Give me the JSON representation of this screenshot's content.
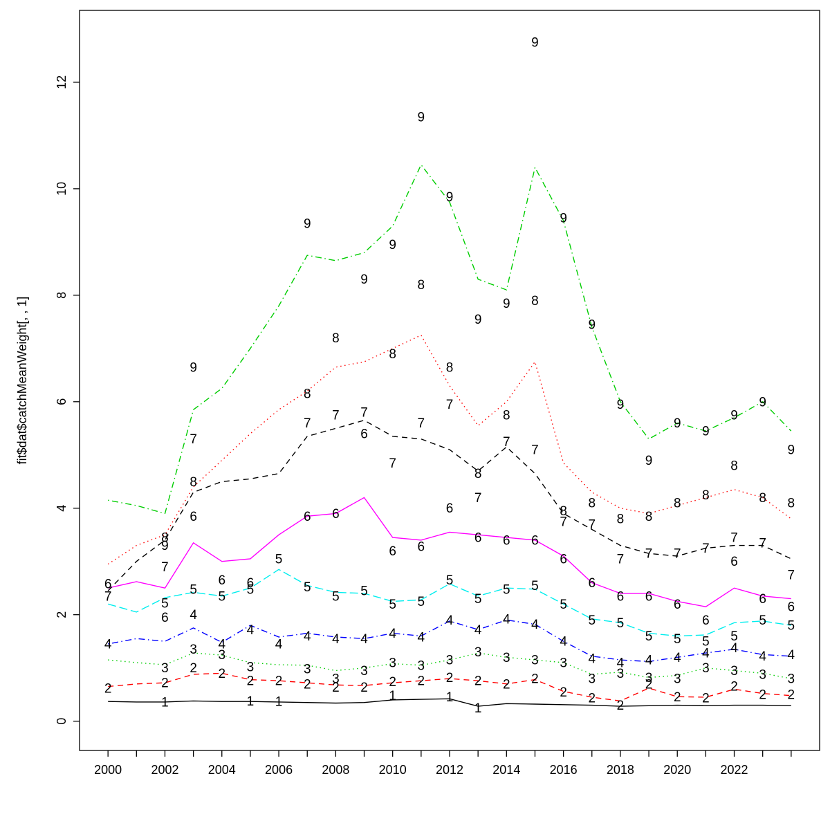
{
  "figure": {
    "background": "#ffffff"
  },
  "chart_data": {
    "type": "line",
    "title": "",
    "xlabel": "",
    "ylabel": "fit$dat$catchMeanWeight[, , 1]",
    "grid": false,
    "legend": "none",
    "xlim": [
      1999,
      2025
    ],
    "ylim": [
      -0.55,
      13.35
    ],
    "years": [
      2000,
      2001,
      2002,
      2003,
      2004,
      2005,
      2006,
      2007,
      2008,
      2009,
      2010,
      2011,
      2012,
      2013,
      2014,
      2015,
      2016,
      2017,
      2018,
      2019,
      2020,
      2021,
      2022,
      2023,
      2024
    ],
    "x_axis": {
      "tick_years": [
        2000,
        2001,
        2002,
        2003,
        2004,
        2005,
        2006,
        2007,
        2008,
        2009,
        2010,
        2011,
        2012,
        2013,
        2014,
        2015,
        2016,
        2017,
        2018,
        2019,
        2020,
        2021,
        2022,
        2023,
        2024
      ],
      "label_years": [
        2000,
        2002,
        2004,
        2006,
        2008,
        2010,
        2012,
        2014,
        2016,
        2018,
        2020,
        2022
      ],
      "labels": [
        "2000",
        "2002",
        "2004",
        "2006",
        "2008",
        "2010",
        "2012",
        "2014",
        "2016",
        "2018",
        "2020",
        "2022"
      ]
    },
    "y_axis": {
      "tick_values": [
        0,
        2,
        4,
        6,
        8,
        10,
        12
      ],
      "labels": [
        "0",
        "2",
        "4",
        "6",
        "8",
        "10",
        "12"
      ]
    },
    "series": [
      {
        "name": "1",
        "color": "#000000",
        "linetype": "solid",
        "line": [
          0.37,
          0.36,
          0.36,
          0.38,
          0.37,
          0.37,
          0.36,
          0.35,
          0.34,
          0.35,
          0.4,
          0.41,
          0.42,
          0.28,
          0.33,
          0.32,
          0.31,
          0.3,
          0.28,
          0.29,
          0.3,
          0.29,
          0.3,
          0.3,
          0.29
        ],
        "points": [
          [
            2002,
            0.36
          ],
          [
            2005,
            0.38
          ],
          [
            2006,
            0.37
          ],
          [
            2010,
            0.48
          ],
          [
            2012,
            0.46
          ],
          [
            2013,
            0.25
          ]
        ]
      },
      {
        "name": "2",
        "color": "#FF0000",
        "linetype": "dashed",
        "line": [
          0.65,
          0.7,
          0.72,
          0.88,
          0.9,
          0.78,
          0.76,
          0.72,
          0.68,
          0.67,
          0.72,
          0.76,
          0.8,
          0.76,
          0.7,
          0.78,
          0.56,
          0.45,
          0.38,
          0.62,
          0.46,
          0.45,
          0.6,
          0.52,
          0.48
        ],
        "points": [
          [
            2000,
            0.62
          ],
          [
            2002,
            0.72
          ],
          [
            2003,
            1.0
          ],
          [
            2004,
            0.9
          ],
          [
            2005,
            0.76
          ],
          [
            2006,
            0.76
          ],
          [
            2007,
            0.7
          ],
          [
            2008,
            0.64
          ],
          [
            2009,
            0.64
          ],
          [
            2010,
            0.74
          ],
          [
            2011,
            0.76
          ],
          [
            2012,
            0.82
          ],
          [
            2013,
            0.76
          ],
          [
            2014,
            0.7
          ],
          [
            2015,
            0.8
          ],
          [
            2016,
            0.55
          ],
          [
            2017,
            0.44
          ],
          [
            2018,
            0.3
          ],
          [
            2019,
            0.7
          ],
          [
            2020,
            0.46
          ],
          [
            2021,
            0.44
          ],
          [
            2022,
            0.66
          ],
          [
            2023,
            0.5
          ],
          [
            2024,
            0.5
          ]
        ]
      },
      {
        "name": "3",
        "color": "#00CD00",
        "linetype": "dotted",
        "line": [
          1.15,
          1.1,
          1.06,
          1.28,
          1.24,
          1.1,
          1.06,
          1.05,
          0.95,
          1.0,
          1.08,
          1.05,
          1.15,
          1.28,
          1.2,
          1.15,
          1.1,
          0.88,
          0.92,
          0.82,
          0.86,
          1.0,
          0.95,
          0.9,
          0.8
        ],
        "points": [
          [
            2002,
            1.0
          ],
          [
            2003,
            1.35
          ],
          [
            2004,
            1.25
          ],
          [
            2005,
            1.02
          ],
          [
            2007,
            0.98
          ],
          [
            2008,
            0.8
          ],
          [
            2009,
            0.95
          ],
          [
            2010,
            1.1
          ],
          [
            2011,
            1.05
          ],
          [
            2012,
            1.15
          ],
          [
            2013,
            1.3
          ],
          [
            2014,
            1.2
          ],
          [
            2015,
            1.15
          ],
          [
            2016,
            1.1
          ],
          [
            2017,
            0.8
          ],
          [
            2018,
            0.9
          ],
          [
            2019,
            0.82
          ],
          [
            2020,
            0.8
          ],
          [
            2021,
            1.0
          ],
          [
            2022,
            0.95
          ],
          [
            2023,
            0.88
          ],
          [
            2024,
            0.8
          ]
        ]
      },
      {
        "name": "4",
        "color": "#0000FF",
        "linetype": "dotdash",
        "line": [
          1.45,
          1.55,
          1.5,
          1.75,
          1.48,
          1.8,
          1.58,
          1.65,
          1.58,
          1.55,
          1.65,
          1.6,
          1.88,
          1.72,
          1.9,
          1.82,
          1.5,
          1.22,
          1.15,
          1.12,
          1.2,
          1.28,
          1.35,
          1.25,
          1.22
        ],
        "points": [
          [
            2000,
            1.45
          ],
          [
            2003,
            2.0
          ],
          [
            2004,
            1.45
          ],
          [
            2005,
            1.72
          ],
          [
            2006,
            1.45
          ],
          [
            2007,
            1.6
          ],
          [
            2008,
            1.55
          ],
          [
            2009,
            1.55
          ],
          [
            2010,
            1.65
          ],
          [
            2011,
            1.58
          ],
          [
            2012,
            1.9
          ],
          [
            2013,
            1.72
          ],
          [
            2014,
            1.92
          ],
          [
            2015,
            1.82
          ],
          [
            2016,
            1.5
          ],
          [
            2017,
            1.18
          ],
          [
            2018,
            1.1
          ],
          [
            2019,
            1.15
          ],
          [
            2020,
            1.2
          ],
          [
            2021,
            1.28
          ],
          [
            2022,
            1.38
          ],
          [
            2023,
            1.22
          ],
          [
            2024,
            1.25
          ]
        ]
      },
      {
        "name": "5",
        "color": "#00EEEE",
        "linetype": "longdash",
        "line": [
          2.2,
          2.05,
          2.32,
          2.42,
          2.35,
          2.5,
          2.85,
          2.55,
          2.42,
          2.4,
          2.25,
          2.28,
          2.58,
          2.35,
          2.5,
          2.48,
          2.2,
          1.92,
          1.85,
          1.65,
          1.6,
          1.62,
          1.85,
          1.88,
          1.8
        ],
        "points": [
          [
            2002,
            2.22
          ],
          [
            2003,
            2.48
          ],
          [
            2004,
            2.35
          ],
          [
            2005,
            2.48
          ],
          [
            2006,
            3.05
          ],
          [
            2007,
            2.52
          ],
          [
            2008,
            2.35
          ],
          [
            2009,
            2.45
          ],
          [
            2010,
            2.2
          ],
          [
            2011,
            2.25
          ],
          [
            2012,
            2.65
          ],
          [
            2013,
            2.3
          ],
          [
            2014,
            2.48
          ],
          [
            2015,
            2.55
          ],
          [
            2016,
            2.2
          ],
          [
            2017,
            1.9
          ],
          [
            2018,
            1.85
          ],
          [
            2019,
            1.6
          ],
          [
            2020,
            1.55
          ],
          [
            2021,
            1.5
          ],
          [
            2022,
            1.6
          ],
          [
            2023,
            1.9
          ],
          [
            2024,
            1.8
          ]
        ]
      },
      {
        "name": "6",
        "color": "#FF00FF",
        "linetype": "solid",
        "line": [
          2.5,
          2.62,
          2.5,
          3.35,
          3.0,
          3.05,
          3.5,
          3.85,
          3.9,
          4.2,
          3.45,
          3.4,
          3.55,
          3.5,
          3.45,
          3.4,
          3.1,
          2.6,
          2.4,
          2.4,
          2.25,
          2.15,
          2.5,
          2.35,
          2.3
        ],
        "points": [
          [
            2000,
            2.58
          ],
          [
            2002,
            1.95
          ],
          [
            2003,
            3.85
          ],
          [
            2004,
            2.65
          ],
          [
            2005,
            2.6
          ],
          [
            2007,
            3.85
          ],
          [
            2008,
            3.9
          ],
          [
            2009,
            5.4
          ],
          [
            2010,
            3.2
          ],
          [
            2011,
            3.28
          ],
          [
            2012,
            4.0
          ],
          [
            2013,
            3.45
          ],
          [
            2014,
            3.4
          ],
          [
            2015,
            3.4
          ],
          [
            2016,
            3.05
          ],
          [
            2017,
            2.6
          ],
          [
            2018,
            2.35
          ],
          [
            2019,
            2.35
          ],
          [
            2020,
            2.2
          ],
          [
            2021,
            1.9
          ],
          [
            2022,
            3.0
          ],
          [
            2023,
            2.3
          ],
          [
            2024,
            2.15
          ]
        ]
      },
      {
        "name": "7",
        "color": "#000000",
        "linetype": "dashed",
        "line": [
          2.45,
          3.0,
          3.4,
          4.3,
          4.5,
          4.55,
          4.65,
          5.35,
          5.5,
          5.65,
          5.35,
          5.3,
          5.1,
          4.7,
          5.15,
          4.65,
          3.9,
          3.6,
          3.3,
          3.15,
          3.1,
          3.25,
          3.3,
          3.3,
          3.05
        ],
        "points": [
          [
            2000,
            2.35
          ],
          [
            2002,
            2.9
          ],
          [
            2003,
            5.3
          ],
          [
            2007,
            5.6
          ],
          [
            2008,
            5.75
          ],
          [
            2009,
            5.8
          ],
          [
            2010,
            4.85
          ],
          [
            2011,
            5.6
          ],
          [
            2012,
            5.95
          ],
          [
            2013,
            4.2
          ],
          [
            2014,
            5.25
          ],
          [
            2015,
            5.1
          ],
          [
            2016,
            3.75
          ],
          [
            2017,
            3.7
          ],
          [
            2018,
            3.05
          ],
          [
            2019,
            3.15
          ],
          [
            2020,
            3.15
          ],
          [
            2021,
            3.25
          ],
          [
            2022,
            3.45
          ],
          [
            2023,
            3.35
          ],
          [
            2024,
            2.75
          ]
        ]
      },
      {
        "name": "8",
        "color": "#FF0000",
        "linetype": "dotted",
        "line": [
          2.95,
          3.3,
          3.5,
          4.4,
          4.9,
          5.4,
          5.85,
          6.2,
          6.65,
          6.75,
          7.0,
          7.25,
          6.3,
          5.55,
          6.0,
          6.75,
          4.85,
          4.3,
          4.0,
          3.9,
          4.05,
          4.2,
          4.35,
          4.2,
          3.8
        ],
        "points": [
          [
            2002,
            3.45
          ],
          [
            2003,
            4.5
          ],
          [
            2007,
            6.15
          ],
          [
            2008,
            7.2
          ],
          [
            2010,
            6.9
          ],
          [
            2011,
            8.2
          ],
          [
            2012,
            6.65
          ],
          [
            2013,
            4.65
          ],
          [
            2014,
            5.75
          ],
          [
            2015,
            7.9
          ],
          [
            2016,
            3.95
          ],
          [
            2017,
            4.1
          ],
          [
            2018,
            3.8
          ],
          [
            2019,
            3.85
          ],
          [
            2020,
            4.1
          ],
          [
            2021,
            4.25
          ],
          [
            2022,
            4.8
          ],
          [
            2023,
            4.2
          ],
          [
            2024,
            4.1
          ]
        ]
      },
      {
        "name": "9",
        "color": "#00CD00",
        "linetype": "dotdash",
        "line": [
          4.15,
          4.05,
          3.9,
          5.85,
          6.25,
          7.0,
          7.8,
          8.75,
          8.65,
          8.8,
          9.3,
          10.45,
          9.75,
          8.3,
          8.1,
          10.4,
          9.4,
          7.4,
          6.0,
          5.3,
          5.6,
          5.45,
          5.7,
          6.0,
          5.45
        ],
        "points": [
          [
            2002,
            3.3
          ],
          [
            2003,
            6.65
          ],
          [
            2007,
            9.35
          ],
          [
            2009,
            8.3
          ],
          [
            2010,
            8.95
          ],
          [
            2011,
            11.35
          ],
          [
            2012,
            9.85
          ],
          [
            2013,
            7.55
          ],
          [
            2014,
            7.85
          ],
          [
            2015,
            12.75
          ],
          [
            2016,
            9.45
          ],
          [
            2017,
            7.45
          ],
          [
            2018,
            5.95
          ],
          [
            2019,
            4.9
          ],
          [
            2020,
            5.6
          ],
          [
            2021,
            5.45
          ],
          [
            2022,
            5.75
          ],
          [
            2023,
            6.0
          ],
          [
            2024,
            5.1
          ]
        ]
      }
    ]
  }
}
